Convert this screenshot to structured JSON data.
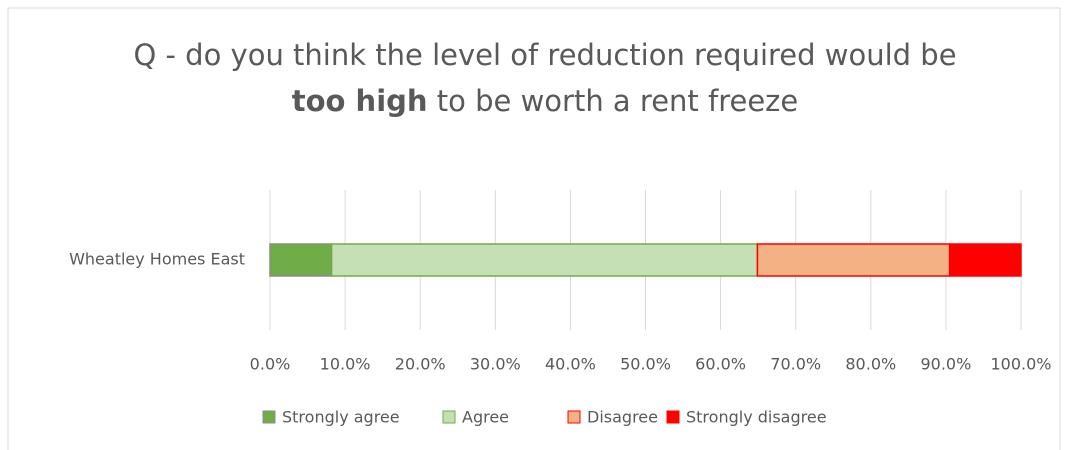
{
  "chart_data": {
    "type": "stacked_bar_horizontal",
    "title": {
      "line1": "Q - do you think the level of reduction required would be",
      "bold": "too high",
      "rest": "to be worth a rent freeze"
    },
    "categories": [
      "Wheatley Homes East"
    ],
    "series": [
      {
        "name": "Strongly agree",
        "color": "#70ad47",
        "edge": "#8c8c8c",
        "values": [
          8.2
        ]
      },
      {
        "name": "Agree",
        "color": "#c5e0b4",
        "edge": "#70ad47",
        "values": [
          56.7
        ]
      },
      {
        "name": "Disagree",
        "color": "#f4b183",
        "edge": "#ff0000",
        "values": [
          25.6
        ]
      },
      {
        "name": "Strongly disagree",
        "color": "#ff0000",
        "edge": "#ff0000",
        "values": [
          9.5
        ]
      }
    ],
    "xlim": [
      0,
      100
    ],
    "xticks": [
      {
        "value": 0,
        "label": "0.0%"
      },
      {
        "value": 10,
        "label": "10.0%"
      },
      {
        "value": 20,
        "label": "20.0%"
      },
      {
        "value": 30,
        "label": "30.0%"
      },
      {
        "value": 40,
        "label": "40.0%"
      },
      {
        "value": 50,
        "label": "50.0%"
      },
      {
        "value": 60,
        "label": "60.0%"
      },
      {
        "value": 70,
        "label": "70.0%"
      },
      {
        "value": 80,
        "label": "80.0%"
      },
      {
        "value": 90,
        "label": "90.0%"
      },
      {
        "value": 100,
        "label": "100.0%"
      }
    ],
    "grid": true,
    "legend": "bottom"
  }
}
